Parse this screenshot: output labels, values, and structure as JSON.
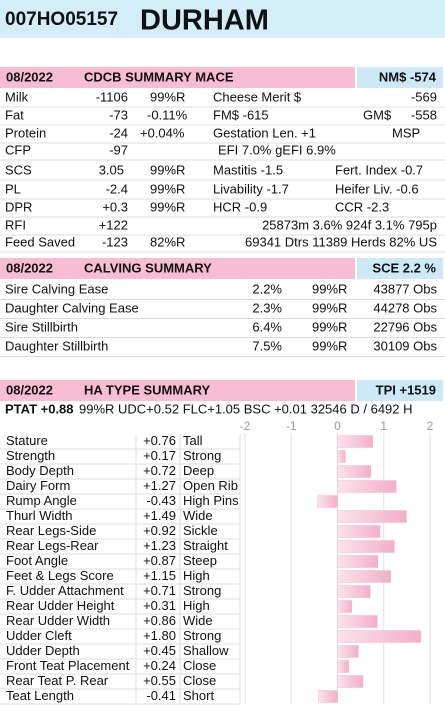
{
  "header": {
    "code": "007HO05157",
    "name": "DURHAM"
  },
  "mace": {
    "date": "08/2022",
    "title": "CDCB SUMMARY MACE",
    "badge": "NM$ -574",
    "rows": [
      [
        "Milk",
        "-1106",
        "99%R",
        "Cheese Merit $",
        "-569"
      ],
      [
        "Fat",
        "-73",
        "-0.11%",
        "FM$ -615",
        "GM$",
        "-558"
      ],
      [
        "Protein",
        "-24",
        "+0.04%",
        "Gestation Len. +1",
        "MSP"
      ],
      [
        "CFP",
        "-97",
        "EFI 7.0% gEFI 6.9%"
      ],
      [
        "SCS",
        "3.05",
        "99%R",
        "Mastitis -1.5",
        "Fert. Index -0.7"
      ],
      [
        "PL",
        "-2.4",
        "99%R",
        "Livability -1.7",
        "Heifer Liv. -0.6"
      ],
      [
        "DPR",
        "+0.3",
        "99%R",
        "HCR -0.9",
        "CCR -2.3"
      ],
      [
        "RFI",
        "+122",
        "25873m 3.6% 924f 3.1% 795p"
      ],
      [
        "Feed Saved",
        "-123",
        "82%R",
        "69341 Dtrs 11389 Herds 82% US"
      ]
    ]
  },
  "calving": {
    "date": "08/2022",
    "title": "CALVING SUMMARY",
    "badge": "SCE 2.2 %",
    "rows": [
      [
        "Sire Calving Ease",
        "2.2%",
        "99%R",
        "43877 Obs"
      ],
      [
        "Daughter Calving Ease",
        "2.3%",
        "99%R",
        "44278 Obs"
      ],
      [
        "Sire Stillbirth",
        "6.4%",
        "99%R",
        "22796 Obs"
      ],
      [
        "Daughter Stillbirth",
        "7.5%",
        "99%R",
        "30109 Obs"
      ]
    ]
  },
  "type_summary": {
    "date": "08/2022",
    "title": "HA TYPE SUMMARY",
    "badge": "TPI +1519",
    "ptat": "PTAT +0.88",
    "ptat_details": "99%R  UDC+0.52  FLC+1.05  BSC +0.01  32546 D / 6492 H"
  },
  "chart_data": {
    "type": "bar",
    "orientation": "horizontal",
    "categories": [
      "Stature",
      "Strength",
      "Body Depth",
      "Dairy Form",
      "Rump Angle",
      "Thurl Width",
      "Rear Legs-Side",
      "Rear Legs-Rear",
      "Foot Angle",
      "Feet & Legs Score",
      "F. Udder Attachment",
      "Rear Udder Height",
      "Rear Udder Width",
      "Udder Cleft",
      "Udder Depth",
      "Front Teat Placement",
      "Rear Teat P. Rear",
      "Teat Length"
    ],
    "values": [
      0.76,
      0.17,
      0.72,
      1.27,
      -0.43,
      1.49,
      0.92,
      1.23,
      0.87,
      1.15,
      0.71,
      0.31,
      0.86,
      1.8,
      0.45,
      0.24,
      0.55,
      -0.41
    ],
    "value_labels": [
      "+0.76",
      "+0.17",
      "+0.72",
      "+1.27",
      "-0.43",
      "+1.49",
      "+0.92",
      "+1.23",
      "+0.87",
      "+1.15",
      "+0.71",
      "+0.31",
      "+0.86",
      "+1.80",
      "+0.45",
      "+0.24",
      "+0.55",
      "-0.41"
    ],
    "descriptions": [
      "Tall",
      "Strong",
      "Deep",
      "Open Rib",
      "High Pins",
      "Wide",
      "Sickle",
      "Straight",
      "Steep",
      "High",
      "Strong",
      "High",
      "Wide",
      "Strong",
      "Shallow",
      "Close",
      "Close",
      "Short"
    ],
    "xlim": [
      -2,
      2
    ],
    "xticks": [
      -2,
      -1,
      0,
      1,
      2
    ],
    "grid": true,
    "color": "#f5b9cf"
  }
}
